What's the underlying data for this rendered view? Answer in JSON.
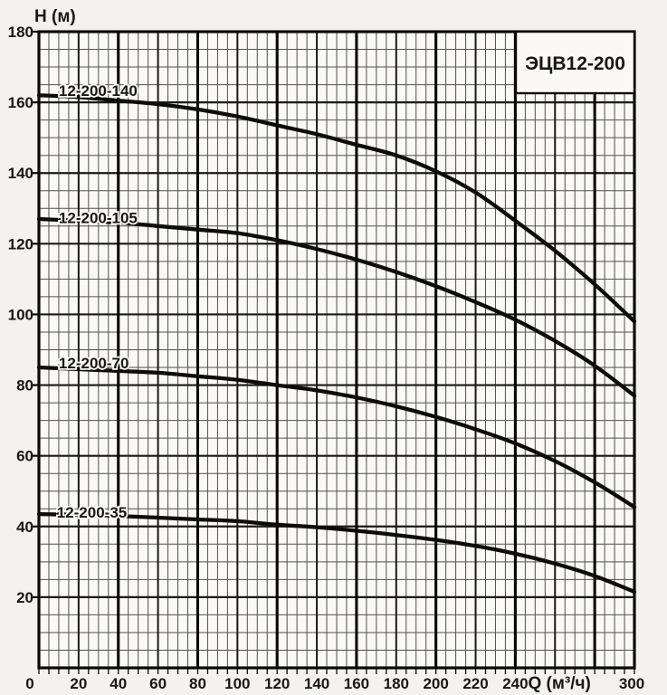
{
  "chart_data": {
    "type": "line",
    "title": "ЭЦВ12-200",
    "xlabel": "Q (м³/ч)",
    "ylabel": "H (м)",
    "xlim": [
      0,
      300
    ],
    "ylim": [
      0,
      180
    ],
    "grid": {
      "minor_step": 5,
      "major_step": 20,
      "heavy_step_x": 40,
      "grid_on": true
    },
    "axes": {
      "origin_label": "0",
      "x_tick_labels": [
        20,
        40,
        60,
        80,
        100,
        120,
        140,
        160,
        180,
        200,
        220,
        240
      ],
      "x_last_tick_label": "300",
      "x_axis_title_anchor_q": 270,
      "y_tick_labels": [
        20,
        40,
        60,
        80,
        100,
        120,
        140,
        160,
        180
      ]
    },
    "legend": {
      "text": "ЭЦВ12-200",
      "position": "top-right"
    },
    "x": [
      0,
      20,
      40,
      60,
      80,
      100,
      120,
      140,
      160,
      180,
      200,
      220,
      240,
      260,
      280,
      300
    ],
    "series": [
      {
        "name": "12-200-140",
        "values": [
          162,
          161.5,
          160.5,
          159.5,
          158,
          156,
          153.5,
          151,
          148,
          145,
          140.5,
          134.5,
          126.5,
          118,
          108.5,
          98
        ],
        "label_anchor": {
          "q": 10,
          "h": 161.8
        }
      },
      {
        "name": "12-200-105",
        "values": [
          127,
          126.5,
          126,
          125,
          124,
          123,
          121,
          118.5,
          115.5,
          112,
          108,
          103.5,
          98.5,
          92.5,
          85.5,
          77
        ],
        "label_anchor": {
          "q": 10,
          "h": 125.8
        }
      },
      {
        "name": "12-200-70",
        "values": [
          85,
          84.5,
          84,
          83.5,
          82.5,
          81.5,
          80,
          78.5,
          76.5,
          74,
          71,
          67.5,
          63.5,
          58.5,
          52.5,
          45.5
        ],
        "label_anchor": {
          "q": 10,
          "h": 84.8
        }
      },
      {
        "name": "12-200-35",
        "values": [
          43.5,
          43.3,
          43,
          42.5,
          42,
          41.5,
          40.5,
          39.8,
          38.8,
          37.6,
          36.2,
          34.5,
          32.3,
          29.5,
          26,
          21.5
        ],
        "label_anchor": {
          "q": 9,
          "h": 42.5
        }
      }
    ],
    "colors": {
      "curve": "#0d0c0b",
      "grid_minor": "#54504b",
      "grid_major": "#1b1916",
      "grid_heavy": "#060606",
      "border": "#0a0a0a",
      "plot_bg": "#faf9f6",
      "page_bg": "#f3f2ef",
      "text": "#191715"
    }
  }
}
